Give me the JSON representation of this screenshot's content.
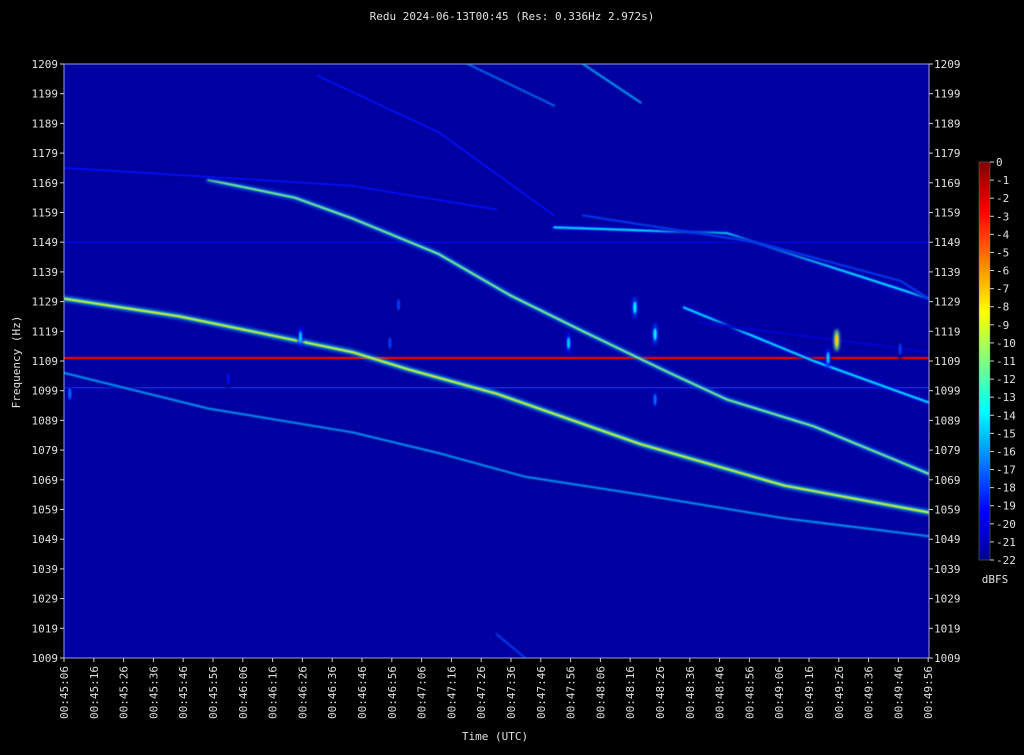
{
  "chart_data": {
    "type": "heatmap",
    "title": "Redu 2024-06-13T00:45 (Res: 0.336Hz 2.972s)",
    "xlabel": "Time (UTC)",
    "ylabel": "Frequency (Hz)",
    "colorbar_label": "dBFS",
    "ylim": [
      1009,
      1209
    ],
    "y_ticks": [
      "1209",
      "1199",
      "1189",
      "1179",
      "1169",
      "1159",
      "1149",
      "1139",
      "1129",
      "1119",
      "1109",
      "1099",
      "1089",
      "1079",
      "1069",
      "1059",
      "1049",
      "1039",
      "1029",
      "1019",
      "1009"
    ],
    "x_ticks": [
      "00:45:06",
      "00:45:16",
      "00:45:26",
      "00:45:36",
      "00:45:46",
      "00:45:56",
      "00:46:06",
      "00:46:16",
      "00:46:26",
      "00:46:36",
      "00:46:46",
      "00:46:56",
      "00:47:06",
      "00:47:16",
      "00:47:26",
      "00:47:36",
      "00:47:46",
      "00:47:56",
      "00:48:06",
      "00:48:16",
      "00:48:26",
      "00:48:36",
      "00:48:46",
      "00:48:56",
      "00:49:06",
      "00:49:16",
      "00:49:26",
      "00:49:36",
      "00:49:46",
      "00:49:56"
    ],
    "colorbar_ticks": [
      "0",
      "-1",
      "-2",
      "-3",
      "-4",
      "-5",
      "-6",
      "-7",
      "-8",
      "-9",
      "-10",
      "-11",
      "-12",
      "-13",
      "-14",
      "-15",
      "-16",
      "-17",
      "-18",
      "-19",
      "-20",
      "-21",
      "-22"
    ],
    "clim": [
      -22,
      0
    ],
    "time_range_s": [
      0,
      300
    ],
    "background_level_dbfs": -21.5,
    "carriers": [
      {
        "freq_hz": 1110,
        "level_dbfs": -2
      },
      {
        "freq_hz": 1100,
        "level_dbfs": -18
      },
      {
        "freq_hz": 1149,
        "level_dbfs": -19
      }
    ],
    "traces": [
      {
        "points": [
          [
            50,
            1170
          ],
          [
            80,
            1164
          ],
          [
            100,
            1157
          ],
          [
            130,
            1145
          ],
          [
            155,
            1131
          ],
          [
            180,
            1119
          ],
          [
            195,
            1112
          ],
          [
            210,
            1105
          ],
          [
            230,
            1096
          ],
          [
            260,
            1087
          ],
          [
            300,
            1071
          ]
        ],
        "level_dbfs": -11
      },
      {
        "points": [
          [
            0,
            1130
          ],
          [
            40,
            1124
          ],
          [
            80,
            1116
          ],
          [
            100,
            1112
          ],
          [
            120,
            1106
          ],
          [
            150,
            1098
          ],
          [
            200,
            1081
          ],
          [
            250,
            1067
          ],
          [
            300,
            1058
          ]
        ],
        "level_dbfs": -9
      },
      {
        "points": [
          [
            0,
            1105
          ],
          [
            50,
            1093
          ],
          [
            100,
            1085
          ],
          [
            130,
            1078
          ],
          [
            160,
            1070
          ],
          [
            200,
            1064
          ],
          [
            250,
            1056
          ],
          [
            300,
            1050
          ]
        ],
        "level_dbfs": -16
      },
      {
        "points": [
          [
            0,
            1174
          ],
          [
            100,
            1168
          ],
          [
            150,
            1160
          ]
        ],
        "level_dbfs": -19
      },
      {
        "points": [
          [
            170,
            1154
          ],
          [
            230,
            1152
          ],
          [
            300,
            1130
          ]
        ],
        "level_dbfs": -14
      },
      {
        "points": [
          [
            180,
            1158
          ],
          [
            240,
            1149
          ],
          [
            290,
            1136
          ],
          [
            300,
            1130
          ]
        ],
        "level_dbfs": -18
      },
      {
        "points": [
          [
            140,
            1209
          ],
          [
            170,
            1195
          ]
        ],
        "level_dbfs": -17
      },
      {
        "points": [
          [
            88,
            1205
          ],
          [
            130,
            1186
          ],
          [
            170,
            1158
          ]
        ],
        "level_dbfs": -19
      },
      {
        "points": [
          [
            180,
            1209
          ],
          [
            200,
            1196
          ]
        ],
        "level_dbfs": -16
      },
      {
        "points": [
          [
            215,
            1127
          ],
          [
            260,
            1109
          ],
          [
            300,
            1095
          ]
        ],
        "level_dbfs": -14
      },
      {
        "points": [
          [
            220,
            1122
          ],
          [
            300,
            1112
          ]
        ],
        "level_dbfs": -20
      },
      {
        "points": [
          [
            150,
            1017
          ],
          [
            160,
            1009
          ]
        ],
        "level_dbfs": -18
      }
    ],
    "bursts": [
      {
        "t_s": 82,
        "freq_hz": 1117,
        "level_dbfs": -15
      },
      {
        "t_s": 57,
        "freq_hz": 1103,
        "level_dbfs": -19
      },
      {
        "t_s": 116,
        "freq_hz": 1128,
        "level_dbfs": -18
      },
      {
        "t_s": 113,
        "freq_hz": 1115,
        "level_dbfs": -18
      },
      {
        "t_s": 175,
        "freq_hz": 1115,
        "level_dbfs": -15
      },
      {
        "t_s": 198,
        "freq_hz": 1127,
        "level_dbfs": -14
      },
      {
        "t_s": 205,
        "freq_hz": 1118,
        "level_dbfs": -14
      },
      {
        "t_s": 205,
        "freq_hz": 1096,
        "level_dbfs": -17
      },
      {
        "t_s": 268,
        "freq_hz": 1116,
        "level_dbfs": -7
      },
      {
        "t_s": 265,
        "freq_hz": 1110,
        "level_dbfs": -15
      },
      {
        "t_s": 290,
        "freq_hz": 1113,
        "level_dbfs": -18
      },
      {
        "t_s": 2,
        "freq_hz": 1098,
        "level_dbfs": -17
      }
    ]
  }
}
